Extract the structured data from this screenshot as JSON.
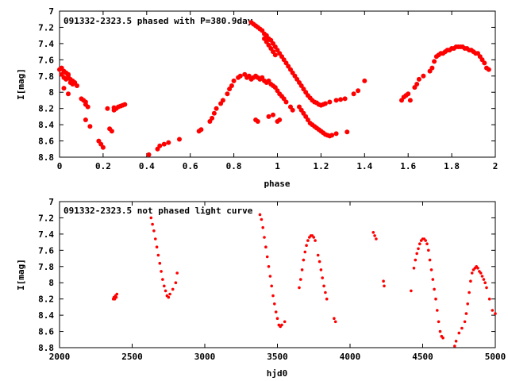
{
  "chart_data": [
    {
      "type": "scatter",
      "title": "091332-2323.5 phased with P=380.9day",
      "xlabel": "phase",
      "ylabel": "I[mag]",
      "xlim": [
        0,
        2
      ],
      "ylim": [
        8.8,
        7.0
      ],
      "y_inverted": true,
      "x_ticks": [
        0,
        0.2,
        0.4,
        0.6,
        0.8,
        1,
        1.2,
        1.4,
        1.6,
        1.8,
        2
      ],
      "x_tick_labels": [
        "0",
        "0.2",
        "0.4",
        "0.6",
        "0.8",
        "1",
        "1.2",
        "1.4",
        "1.6",
        "1.8",
        "2"
      ],
      "y_ticks": [
        7,
        7.2,
        7.4,
        7.6,
        7.8,
        8,
        8.2,
        8.4,
        8.6,
        8.8
      ],
      "y_tick_labels": [
        "7",
        "7.2",
        "7.4",
        "7.6",
        "7.8",
        "8",
        "8.2",
        "8.4",
        "8.6",
        "8.8"
      ],
      "marker_color": "#ff0000",
      "grid": false,
      "points": [
        [
          0.0,
          7.72
        ],
        [
          0.01,
          7.7
        ],
        [
          0.01,
          7.78
        ],
        [
          0.02,
          7.74
        ],
        [
          0.02,
          7.82
        ],
        [
          0.03,
          7.76
        ],
        [
          0.03,
          7.84
        ],
        [
          0.04,
          7.78
        ],
        [
          0.04,
          7.8
        ],
        [
          0.05,
          7.88
        ],
        [
          0.05,
          7.84
        ],
        [
          0.06,
          7.86
        ],
        [
          0.06,
          7.9
        ],
        [
          0.07,
          7.88
        ],
        [
          0.08,
          7.92
        ],
        [
          0.02,
          7.95
        ],
        [
          0.04,
          8.02
        ],
        [
          0.1,
          8.08
        ],
        [
          0.11,
          8.1
        ],
        [
          0.12,
          8.12
        ],
        [
          0.12,
          8.15
        ],
        [
          0.13,
          8.18
        ],
        [
          0.12,
          8.34
        ],
        [
          0.14,
          8.42
        ],
        [
          0.18,
          8.6
        ],
        [
          0.19,
          8.64
        ],
        [
          0.2,
          8.68
        ],
        [
          0.22,
          8.2
        ],
        [
          0.23,
          8.45
        ],
        [
          0.24,
          8.48
        ],
        [
          0.25,
          8.22
        ],
        [
          0.25,
          8.19
        ],
        [
          0.26,
          8.2
        ],
        [
          0.27,
          8.18
        ],
        [
          0.28,
          8.17
        ],
        [
          0.29,
          8.16
        ],
        [
          0.3,
          8.15
        ],
        [
          0.41,
          8.77
        ],
        [
          0.45,
          8.7
        ],
        [
          0.46,
          8.66
        ],
        [
          0.48,
          8.64
        ],
        [
          0.5,
          8.62
        ],
        [
          0.55,
          8.58
        ],
        [
          0.64,
          8.48
        ],
        [
          0.65,
          8.46
        ],
        [
          0.69,
          8.36
        ],
        [
          0.7,
          8.32
        ],
        [
          0.71,
          8.26
        ],
        [
          0.72,
          8.2
        ],
        [
          0.74,
          8.14
        ],
        [
          0.75,
          8.1
        ],
        [
          0.77,
          8.02
        ],
        [
          0.78,
          7.96
        ],
        [
          0.79,
          7.92
        ],
        [
          0.8,
          7.86
        ],
        [
          0.82,
          7.82
        ],
        [
          0.83,
          7.8
        ],
        [
          0.85,
          7.78
        ],
        [
          0.86,
          7.82
        ],
        [
          0.87,
          7.8
        ],
        [
          0.88,
          7.84
        ],
        [
          0.89,
          7.82
        ],
        [
          0.9,
          7.8
        ],
        [
          0.91,
          7.82
        ],
        [
          0.92,
          7.84
        ],
        [
          0.93,
          7.82
        ],
        [
          0.94,
          7.86
        ],
        [
          0.95,
          7.88
        ],
        [
          0.96,
          7.86
        ],
        [
          0.97,
          7.9
        ],
        [
          0.98,
          7.92
        ],
        [
          0.99,
          7.94
        ],
        [
          1.0,
          7.98
        ],
        [
          1.01,
          8.02
        ],
        [
          1.02,
          8.05
        ],
        [
          1.03,
          8.08
        ],
        [
          1.04,
          8.12
        ],
        [
          1.06,
          8.18
        ],
        [
          1.07,
          8.22
        ],
        [
          0.9,
          8.34
        ],
        [
          0.91,
          8.36
        ],
        [
          0.96,
          8.3
        ],
        [
          0.98,
          8.28
        ],
        [
          1.0,
          8.36
        ],
        [
          1.01,
          8.34
        ],
        [
          0.88,
          7.14
        ],
        [
          0.89,
          7.16
        ],
        [
          0.9,
          7.18
        ],
        [
          0.91,
          7.2
        ],
        [
          0.92,
          7.22
        ],
        [
          0.93,
          7.24
        ],
        [
          0.94,
          7.28
        ],
        [
          0.95,
          7.3
        ],
        [
          0.96,
          7.34
        ],
        [
          0.97,
          7.36
        ],
        [
          0.98,
          7.4
        ],
        [
          0.99,
          7.44
        ],
        [
          1.0,
          7.48
        ],
        [
          1.01,
          7.52
        ],
        [
          1.02,
          7.56
        ],
        [
          1.03,
          7.6
        ],
        [
          1.04,
          7.64
        ],
        [
          1.05,
          7.68
        ],
        [
          1.06,
          7.72
        ],
        [
          1.07,
          7.76
        ],
        [
          1.08,
          7.8
        ],
        [
          1.09,
          7.84
        ],
        [
          1.1,
          7.88
        ],
        [
          1.11,
          7.92
        ],
        [
          1.12,
          7.96
        ],
        [
          1.13,
          8.0
        ],
        [
          1.14,
          8.04
        ],
        [
          1.15,
          8.07
        ],
        [
          1.16,
          8.1
        ],
        [
          1.17,
          8.12
        ],
        [
          1.18,
          8.13
        ],
        [
          1.19,
          8.15
        ],
        [
          1.2,
          8.16
        ],
        [
          1.21,
          8.15
        ],
        [
          1.22,
          8.14
        ],
        [
          1.24,
          8.12
        ],
        [
          0.94,
          7.34
        ],
        [
          0.95,
          7.38
        ],
        [
          0.96,
          7.42
        ],
        [
          0.97,
          7.46
        ],
        [
          0.98,
          7.5
        ],
        [
          0.99,
          7.54
        ],
        [
          1.1,
          8.18
        ],
        [
          1.11,
          8.22
        ],
        [
          1.12,
          8.26
        ],
        [
          1.13,
          8.3
        ],
        [
          1.14,
          8.34
        ],
        [
          1.15,
          8.38
        ],
        [
          1.16,
          8.4
        ],
        [
          1.17,
          8.42
        ],
        [
          1.18,
          8.44
        ],
        [
          1.19,
          8.46
        ],
        [
          1.2,
          8.48
        ],
        [
          1.21,
          8.5
        ],
        [
          1.22,
          8.52
        ],
        [
          1.23,
          8.53
        ],
        [
          1.24,
          8.54
        ],
        [
          1.25,
          8.53
        ],
        [
          1.27,
          8.51
        ],
        [
          1.32,
          8.49
        ],
        [
          1.27,
          8.1
        ],
        [
          1.29,
          8.09
        ],
        [
          1.31,
          8.08
        ],
        [
          1.35,
          8.02
        ],
        [
          1.37,
          7.98
        ],
        [
          1.4,
          7.86
        ],
        [
          1.57,
          8.1
        ],
        [
          1.58,
          8.06
        ],
        [
          1.59,
          8.04
        ],
        [
          1.6,
          8.02
        ],
        [
          1.61,
          8.1
        ],
        [
          1.63,
          7.94
        ],
        [
          1.64,
          7.9
        ],
        [
          1.65,
          7.84
        ],
        [
          1.67,
          7.8
        ],
        [
          1.7,
          7.74
        ],
        [
          1.71,
          7.7
        ],
        [
          1.72,
          7.62
        ],
        [
          1.73,
          7.56
        ],
        [
          1.74,
          7.54
        ],
        [
          1.75,
          7.52
        ],
        [
          1.76,
          7.52
        ],
        [
          1.77,
          7.5
        ],
        [
          1.78,
          7.48
        ],
        [
          1.79,
          7.48
        ],
        [
          1.8,
          7.46
        ],
        [
          1.81,
          7.46
        ],
        [
          1.82,
          7.44
        ],
        [
          1.83,
          7.44
        ],
        [
          1.84,
          7.44
        ],
        [
          1.85,
          7.44
        ],
        [
          1.86,
          7.46
        ],
        [
          1.87,
          7.46
        ],
        [
          1.88,
          7.48
        ],
        [
          1.89,
          7.48
        ],
        [
          1.9,
          7.5
        ],
        [
          1.91,
          7.52
        ],
        [
          1.92,
          7.52
        ],
        [
          1.93,
          7.56
        ],
        [
          1.94,
          7.6
        ],
        [
          1.95,
          7.64
        ],
        [
          1.96,
          7.7
        ],
        [
          1.97,
          7.72
        ]
      ]
    },
    {
      "type": "scatter",
      "title": "091332-2323.5 not phased light curve",
      "xlabel": "hjd0",
      "ylabel": "I[mag]",
      "xlim": [
        2000,
        5000
      ],
      "ylim": [
        8.8,
        7.0
      ],
      "y_inverted": true,
      "x_ticks": [
        2000,
        2500,
        3000,
        3500,
        4000,
        4500,
        5000
      ],
      "x_tick_labels": [
        "2000",
        "2500",
        "3000",
        "3500",
        "4000",
        "4500",
        "5000"
      ],
      "y_ticks": [
        7,
        7.2,
        7.4,
        7.6,
        7.8,
        8,
        8.2,
        8.4,
        8.6,
        8.8
      ],
      "y_tick_labels": [
        "7",
        "7.2",
        "7.4",
        "7.6",
        "7.8",
        "8",
        "8.2",
        "8.4",
        "8.6",
        "8.8"
      ],
      "marker_color": "#ff0000",
      "grid": false,
      "points": [
        [
          2370,
          8.2
        ],
        [
          2375,
          8.18
        ],
        [
          2380,
          8.2
        ],
        [
          2385,
          8.16
        ],
        [
          2390,
          8.18
        ],
        [
          2395,
          8.14
        ],
        [
          2630,
          7.2
        ],
        [
          2640,
          7.28
        ],
        [
          2650,
          7.36
        ],
        [
          2660,
          7.46
        ],
        [
          2670,
          7.56
        ],
        [
          2680,
          7.66
        ],
        [
          2690,
          7.76
        ],
        [
          2700,
          7.86
        ],
        [
          2710,
          7.96
        ],
        [
          2720,
          8.04
        ],
        [
          2730,
          8.1
        ],
        [
          2740,
          8.16
        ],
        [
          2750,
          8.18
        ],
        [
          2760,
          8.14
        ],
        [
          2780,
          8.08
        ],
        [
          2800,
          8.0
        ],
        [
          2810,
          7.88
        ],
        [
          3380,
          7.16
        ],
        [
          3390,
          7.22
        ],
        [
          3400,
          7.32
        ],
        [
          3410,
          7.44
        ],
        [
          3420,
          7.56
        ],
        [
          3430,
          7.68
        ],
        [
          3440,
          7.8
        ],
        [
          3450,
          7.92
        ],
        [
          3460,
          8.04
        ],
        [
          3470,
          8.16
        ],
        [
          3480,
          8.26
        ],
        [
          3490,
          8.36
        ],
        [
          3500,
          8.44
        ],
        [
          3510,
          8.52
        ],
        [
          3520,
          8.54
        ],
        [
          3530,
          8.52
        ],
        [
          3550,
          8.48
        ],
        [
          3650,
          8.06
        ],
        [
          3660,
          7.96
        ],
        [
          3670,
          7.84
        ],
        [
          3680,
          7.72
        ],
        [
          3690,
          7.62
        ],
        [
          3700,
          7.54
        ],
        [
          3710,
          7.48
        ],
        [
          3720,
          7.44
        ],
        [
          3730,
          7.42
        ],
        [
          3740,
          7.42
        ],
        [
          3750,
          7.44
        ],
        [
          3760,
          7.48
        ],
        [
          3780,
          7.66
        ],
        [
          3790,
          7.74
        ],
        [
          3800,
          7.84
        ],
        [
          3810,
          7.94
        ],
        [
          3820,
          8.04
        ],
        [
          3830,
          8.12
        ],
        [
          3840,
          8.2
        ],
        [
          3890,
          8.44
        ],
        [
          3900,
          8.48
        ],
        [
          4160,
          7.38
        ],
        [
          4170,
          7.42
        ],
        [
          4180,
          7.46
        ],
        [
          4230,
          7.98
        ],
        [
          4235,
          8.04
        ],
        [
          4420,
          8.1
        ],
        [
          4440,
          7.82
        ],
        [
          4450,
          7.72
        ],
        [
          4460,
          7.64
        ],
        [
          4470,
          7.58
        ],
        [
          4480,
          7.52
        ],
        [
          4490,
          7.48
        ],
        [
          4500,
          7.46
        ],
        [
          4510,
          7.46
        ],
        [
          4520,
          7.48
        ],
        [
          4530,
          7.52
        ],
        [
          4540,
          7.6
        ],
        [
          4550,
          7.72
        ],
        [
          4560,
          7.84
        ],
        [
          4570,
          7.96
        ],
        [
          4580,
          8.08
        ],
        [
          4590,
          8.2
        ],
        [
          4600,
          8.34
        ],
        [
          4610,
          8.48
        ],
        [
          4620,
          8.6
        ],
        [
          4630,
          8.66
        ],
        [
          4640,
          8.68
        ],
        [
          4720,
          8.78
        ],
        [
          4730,
          8.72
        ],
        [
          4750,
          8.62
        ],
        [
          4770,
          8.56
        ],
        [
          4790,
          8.48
        ],
        [
          4800,
          8.38
        ],
        [
          4810,
          8.26
        ],
        [
          4820,
          8.12
        ],
        [
          4830,
          7.98
        ],
        [
          4840,
          7.88
        ],
        [
          4850,
          7.84
        ],
        [
          4860,
          7.82
        ],
        [
          4870,
          7.8
        ],
        [
          4880,
          7.82
        ],
        [
          4890,
          7.86
        ],
        [
          4900,
          7.88
        ],
        [
          4910,
          7.92
        ],
        [
          4920,
          7.96
        ],
        [
          4930,
          8.0
        ],
        [
          4940,
          8.06
        ],
        [
          4960,
          8.2
        ],
        [
          4980,
          8.34
        ],
        [
          5000,
          8.38
        ]
      ]
    }
  ]
}
